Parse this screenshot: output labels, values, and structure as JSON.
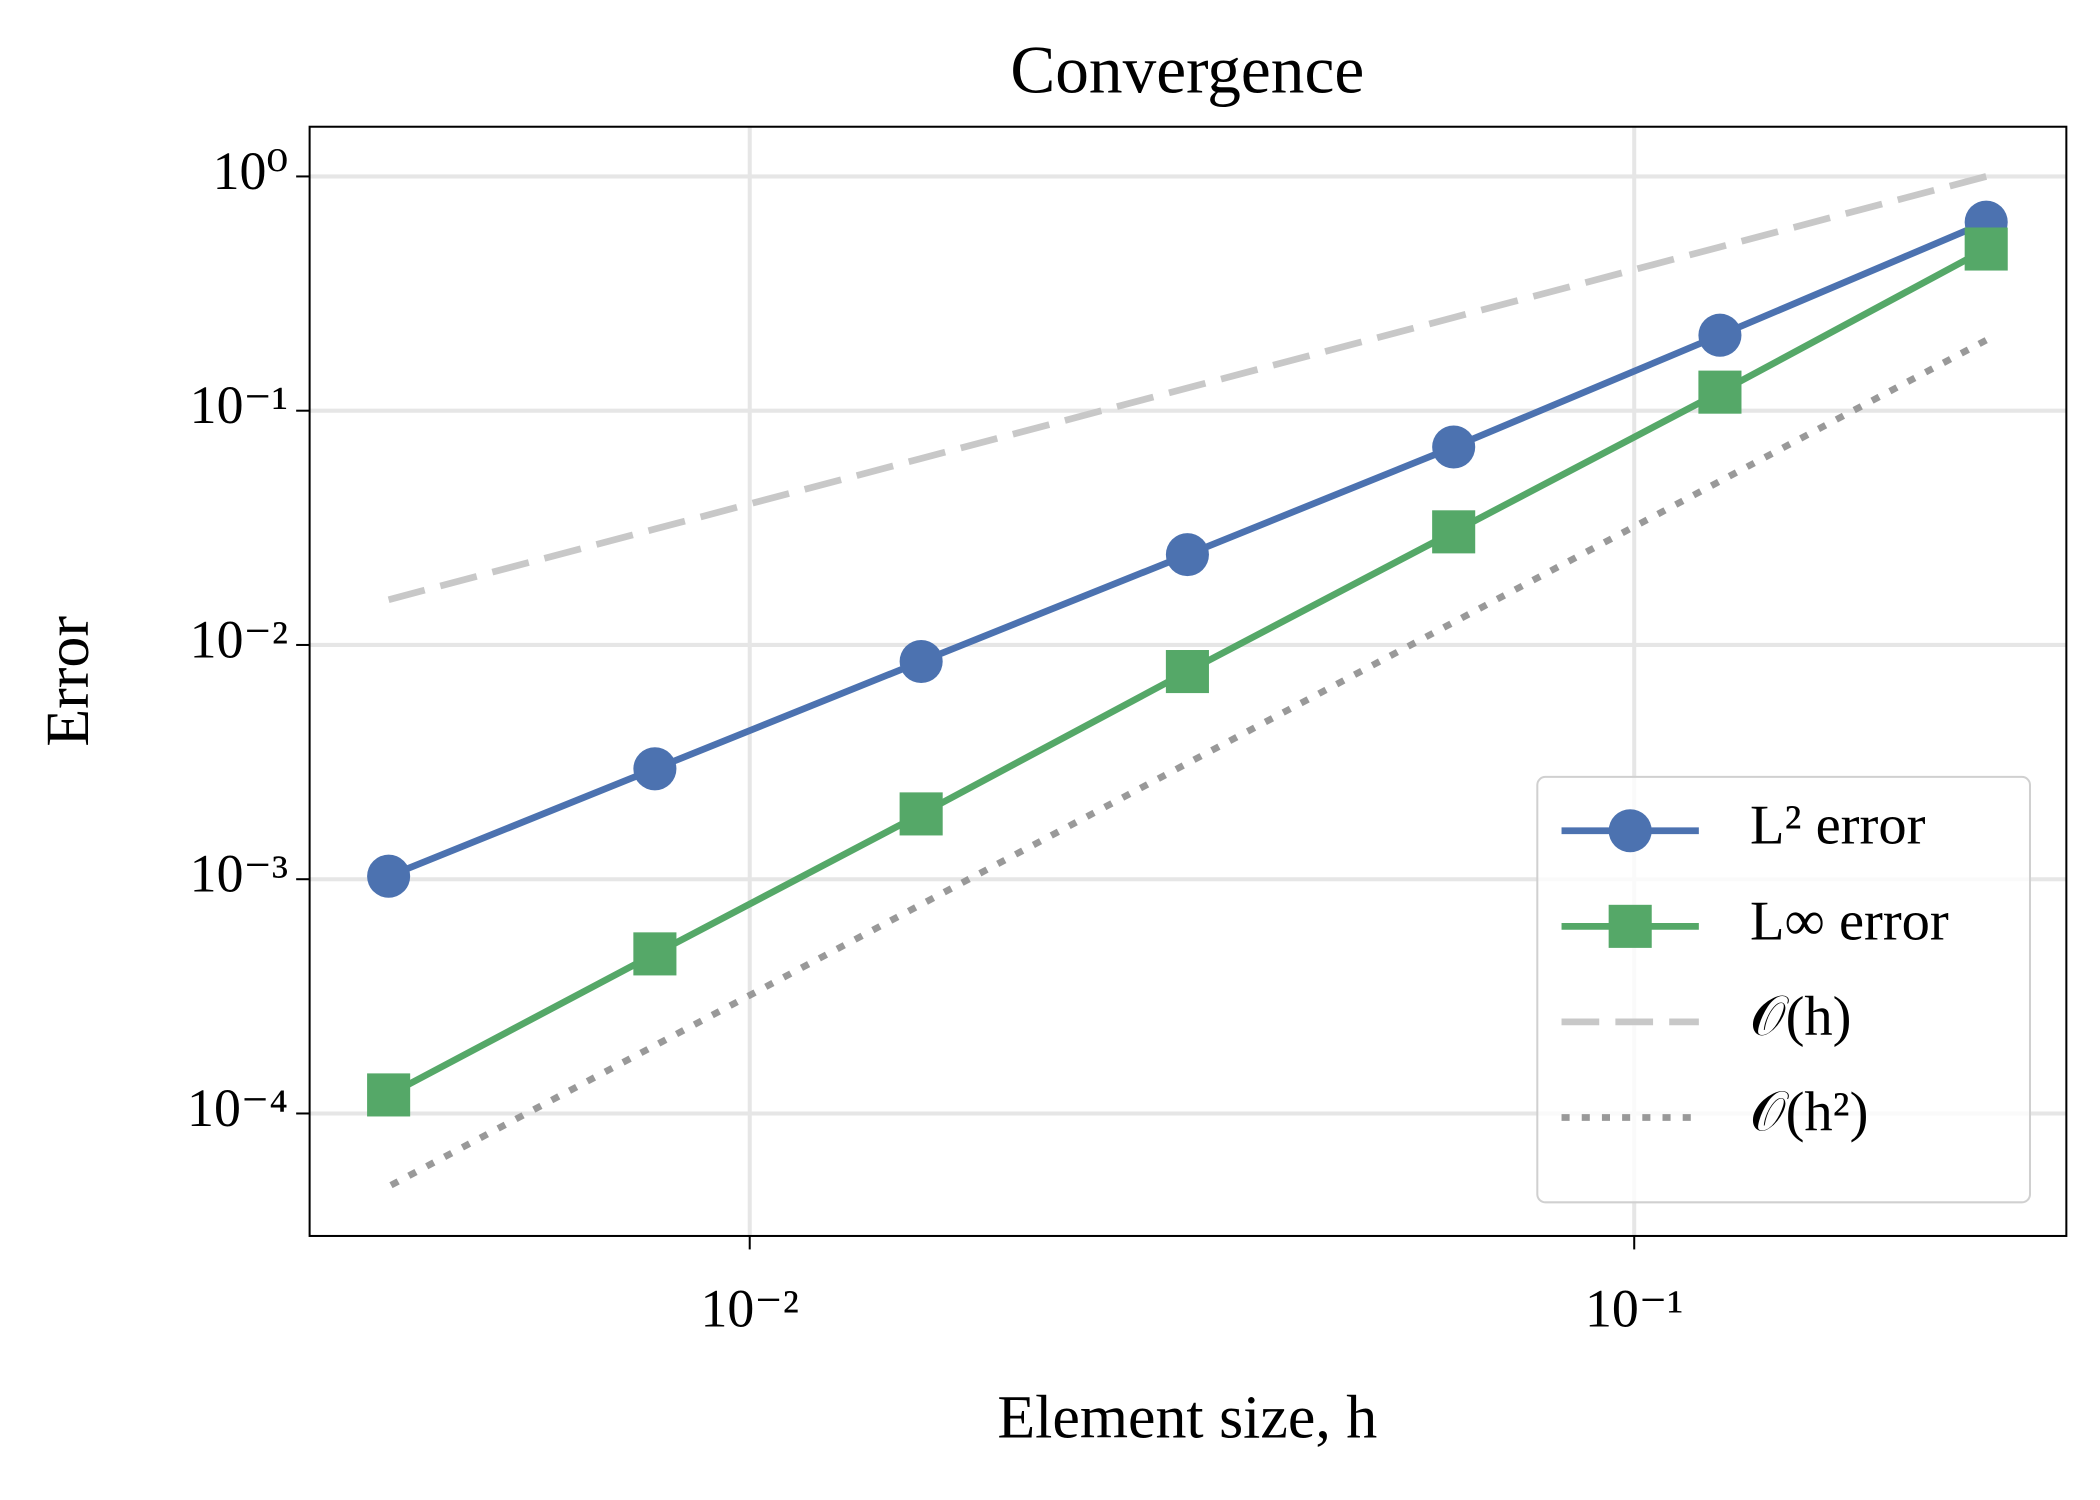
{
  "chart_data": {
    "type": "line",
    "title": "Convergence",
    "x_label": "Element size, h",
    "y_label": "Error",
    "log_x": true,
    "log_y": true,
    "grid": true,
    "legend_position": "lower right",
    "x": [
      0.25,
      0.125,
      0.0625,
      0.03125,
      0.015625,
      0.0078125,
      0.00390625
    ],
    "series": [
      {
        "name": "L² error",
        "color": "#4c72b0",
        "marker": "circle",
        "line_style": "solid",
        "values": [
          0.638,
          0.21,
          0.07,
          0.0243,
          0.0085,
          0.00296,
          0.00103
        ]
      },
      {
        "name": "L∞ error",
        "color": "#55a868",
        "marker": "square",
        "line_style": "solid",
        "values": [
          0.49,
          0.12,
          0.0304,
          0.0077,
          0.0019,
          0.00048,
          0.00012
        ]
      },
      {
        "name": "𝒪(h)",
        "color": "#c8c8c8",
        "marker": "none",
        "line_style": "dashed",
        "values": [
          1.0,
          0.5,
          0.25,
          0.125,
          0.0625,
          0.03125,
          0.0156
        ]
      },
      {
        "name": "𝒪(h²)",
        "color": "#999999",
        "marker": "none",
        "line_style": "dotted",
        "values": [
          0.2,
          0.05,
          0.0125,
          0.003125,
          0.00078,
          0.000195,
          4.88e-05
        ]
      }
    ],
    "xlim": [
      0.00318,
      0.308
    ],
    "ylim": [
      3e-05,
      1.63
    ],
    "xticks": [
      {
        "value": 0.01,
        "label": "10⁻²"
      },
      {
        "value": 0.1,
        "label": "10⁻¹"
      }
    ],
    "yticks": [
      {
        "value": 0.0001,
        "label": "10⁻⁴"
      },
      {
        "value": 0.001,
        "label": "10⁻³"
      },
      {
        "value": 0.01,
        "label": "10⁻²"
      },
      {
        "value": 0.1,
        "label": "10⁻¹"
      },
      {
        "value": 1,
        "label": "10⁰"
      }
    ]
  }
}
